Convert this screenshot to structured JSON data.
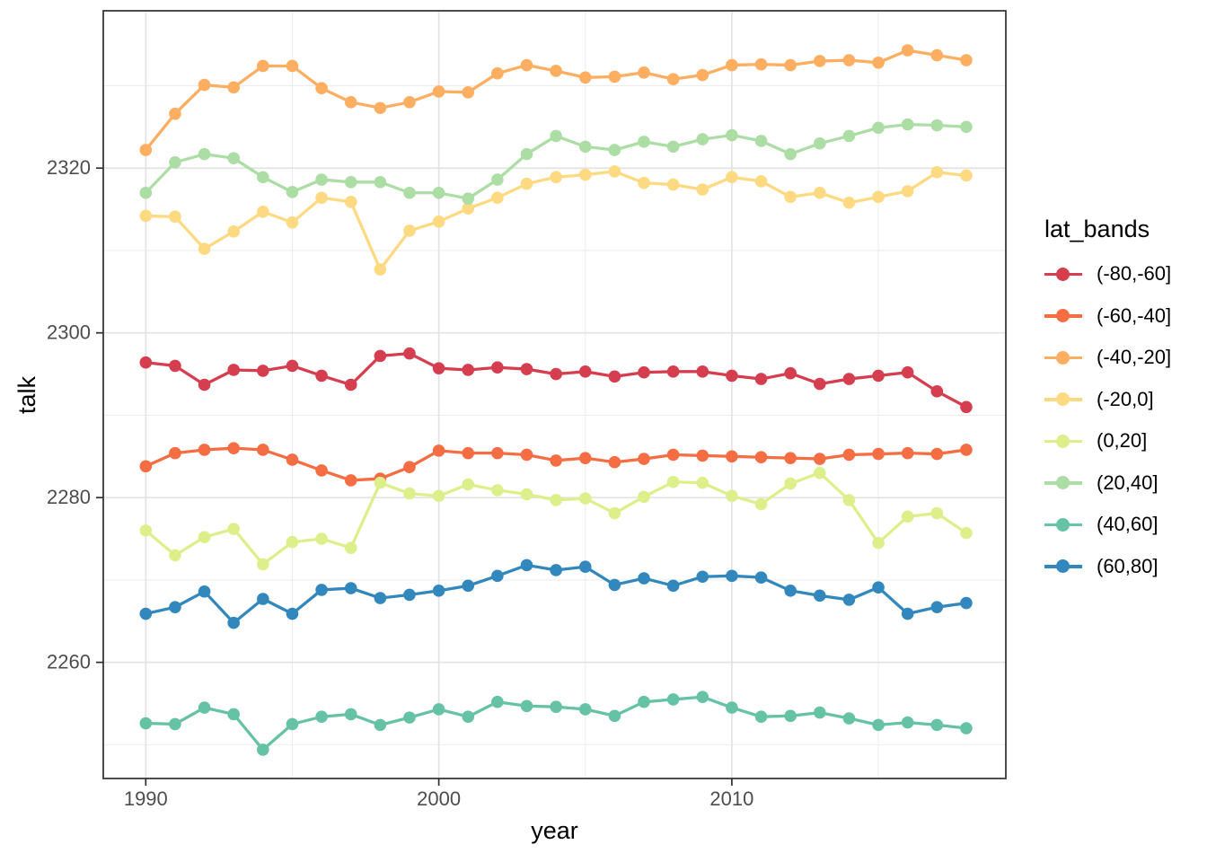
{
  "chart_data": {
    "type": "line",
    "title": "",
    "xlabel": "year",
    "ylabel": "talk",
    "legend_title": "lat_bands",
    "legend_position": "right",
    "grid": true,
    "xlim": [
      1988.55,
      2019.35
    ],
    "ylim": [
      2245.9,
      2339.1
    ],
    "x_ticks": [
      1990,
      2000,
      2010
    ],
    "x_minor": [
      1995,
      2005,
      2015
    ],
    "y_ticks": [
      2260,
      2280,
      2300,
      2320
    ],
    "y_minor": [
      2250,
      2270,
      2290,
      2310,
      2330
    ],
    "x": [
      1990,
      1991,
      1992,
      1993,
      1994,
      1995,
      1996,
      1997,
      1998,
      1999,
      2000,
      2001,
      2002,
      2003,
      2004,
      2005,
      2006,
      2007,
      2008,
      2009,
      2010,
      2011,
      2012,
      2013,
      2014,
      2015,
      2016,
      2017,
      2018
    ],
    "series": [
      {
        "name": "(-80,-60]",
        "color": "#d53e4f",
        "values": [
          2296.4,
          2296.0,
          2293.7,
          2295.5,
          2295.4,
          2296.0,
          2294.8,
          2293.7,
          2297.2,
          2297.5,
          2295.7,
          2295.5,
          2295.8,
          2295.6,
          2295.0,
          2295.3,
          2294.7,
          2295.2,
          2295.3,
          2295.3,
          2294.8,
          2294.4,
          2295.1,
          2293.8,
          2294.4,
          2294.8,
          2295.2,
          2292.9,
          2291.0
        ]
      },
      {
        "name": "(-60,-40]",
        "color": "#f46d43",
        "values": [
          2283.8,
          2285.4,
          2285.8,
          2286.0,
          2285.8,
          2284.6,
          2283.3,
          2282.1,
          2282.3,
          2283.7,
          2285.7,
          2285.4,
          2285.4,
          2285.2,
          2284.5,
          2284.8,
          2284.3,
          2284.7,
          2285.2,
          2285.1,
          2285.0,
          2284.9,
          2284.8,
          2284.7,
          2285.2,
          2285.3,
          2285.4,
          2285.3,
          2285.8
        ]
      },
      {
        "name": "(-40,-20]",
        "color": "#fdae61",
        "values": [
          2322.2,
          2326.6,
          2330.1,
          2329.8,
          2332.4,
          2332.4,
          2329.7,
          2328.0,
          2327.3,
          2328.0,
          2329.3,
          2329.2,
          2331.5,
          2332.5,
          2331.8,
          2331.0,
          2331.1,
          2331.6,
          2330.8,
          2331.3,
          2332.5,
          2332.6,
          2332.5,
          2333.0,
          2333.1,
          2332.8,
          2334.3,
          2333.7,
          2333.1
        ]
      },
      {
        "name": "(-20,0]",
        "color": "#fdda82",
        "values": [
          2314.2,
          2314.1,
          2310.2,
          2312.3,
          2314.7,
          2313.4,
          2316.4,
          2315.9,
          2307.7,
          2312.4,
          2313.5,
          2315.1,
          2316.4,
          2318.1,
          2318.9,
          2319.2,
          2319.6,
          2318.2,
          2318.0,
          2317.4,
          2318.9,
          2318.4,
          2316.5,
          2317.0,
          2315.8,
          2316.5,
          2317.2,
          2319.5,
          2319.1
        ]
      },
      {
        "name": "(0,20]",
        "color": "#ddef8b",
        "values": [
          2276.0,
          2273.0,
          2275.2,
          2276.2,
          2271.9,
          2274.6,
          2275.0,
          2273.9,
          2281.8,
          2280.5,
          2280.2,
          2281.6,
          2280.9,
          2280.4,
          2279.7,
          2279.9,
          2278.1,
          2280.1,
          2281.9,
          2281.8,
          2280.2,
          2279.2,
          2281.7,
          2283.0,
          2279.7,
          2274.5,
          2277.7,
          2278.1,
          2275.7
        ]
      },
      {
        "name": "(20,40]",
        "color": "#abdda4",
        "values": [
          2317.0,
          2320.7,
          2321.7,
          2321.2,
          2318.9,
          2317.1,
          2318.6,
          2318.3,
          2318.3,
          2317.0,
          2317.0,
          2316.3,
          2318.6,
          2321.7,
          2323.9,
          2322.6,
          2322.2,
          2323.2,
          2322.6,
          2323.5,
          2324.0,
          2323.3,
          2321.7,
          2323.0,
          2323.9,
          2324.9,
          2325.3,
          2325.2,
          2325.0
        ]
      },
      {
        "name": "(40,60]",
        "color": "#66c2a5",
        "values": [
          2252.6,
          2252.5,
          2254.5,
          2253.7,
          2249.4,
          2252.5,
          2253.4,
          2253.7,
          2252.4,
          2253.3,
          2254.3,
          2253.4,
          2255.2,
          2254.7,
          2254.6,
          2254.3,
          2253.5,
          2255.2,
          2255.5,
          2255.8,
          2254.5,
          2253.4,
          2253.5,
          2253.9,
          2253.2,
          2252.4,
          2252.7,
          2252.4,
          2252.0
        ]
      },
      {
        "name": "(60,80]",
        "color": "#3288bd",
        "values": [
          2265.9,
          2266.7,
          2268.6,
          2264.8,
          2267.7,
          2265.9,
          2268.8,
          2269.0,
          2267.8,
          2268.2,
          2268.7,
          2269.3,
          2270.5,
          2271.8,
          2271.2,
          2271.6,
          2269.4,
          2270.2,
          2269.3,
          2270.4,
          2270.5,
          2270.3,
          2268.7,
          2268.1,
          2267.6,
          2269.1,
          2265.9,
          2266.7,
          2267.2
        ]
      }
    ]
  },
  "style": {
    "grid_major_color": "#e3e3e3",
    "grid_minor_color": "#ededed",
    "panel_border_color": "#2e2e2e",
    "tick_color": "#2e2e2e",
    "tick_label_color": "#4d4d4d"
  }
}
